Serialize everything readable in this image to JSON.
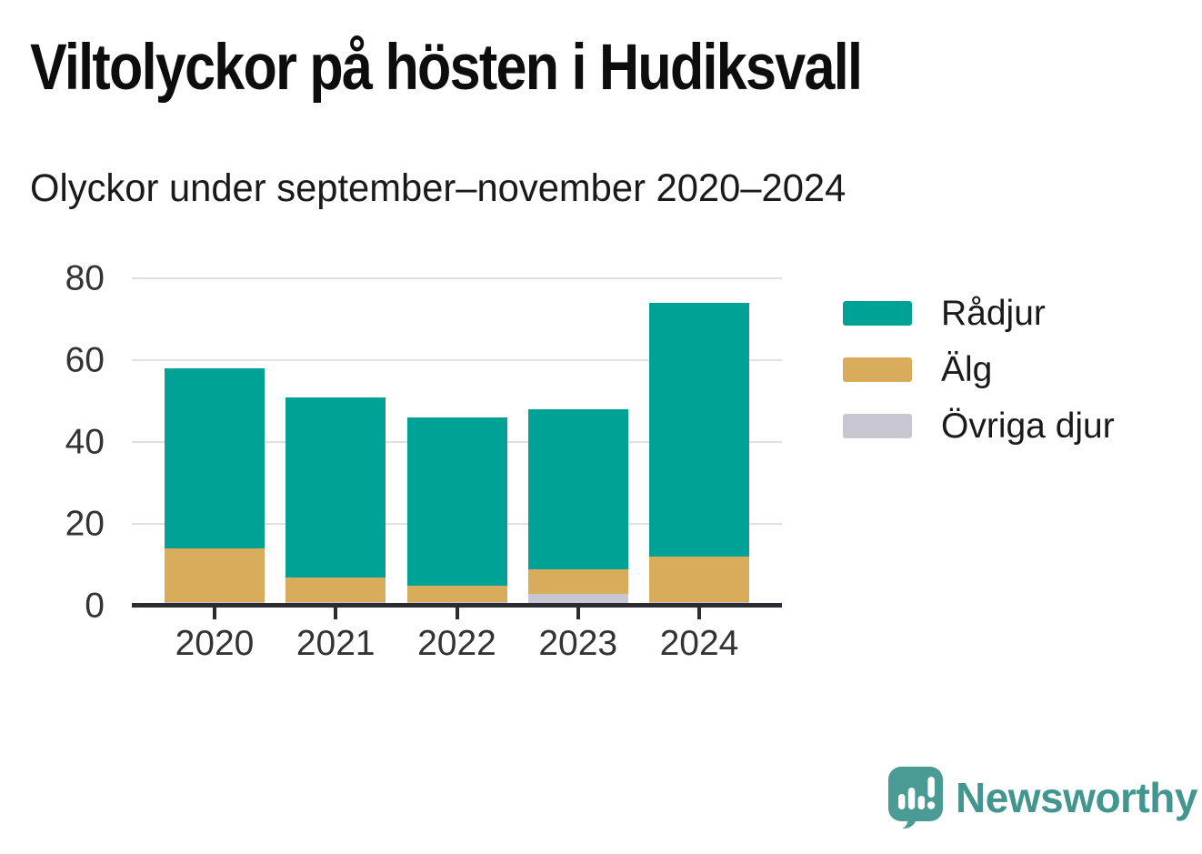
{
  "header": {
    "title": "Viltolyckor på hösten i Hudiksvall",
    "subtitle": "Olyckor under september–november 2020–2024"
  },
  "chart_data": {
    "type": "bar",
    "stacked": true,
    "title": "Viltolyckor på hösten i Hudiksvall",
    "subtitle": "Olyckor under september–november 2020–2024",
    "categories": [
      "2020",
      "2021",
      "2022",
      "2023",
      "2024"
    ],
    "series": [
      {
        "name": "Rådjur",
        "color": "#00A296",
        "values": [
          44,
          44,
          41,
          39,
          62
        ]
      },
      {
        "name": "Älg",
        "color": "#D9AC5B",
        "values": [
          13,
          6,
          4,
          6,
          11
        ]
      },
      {
        "name": "Övriga djur",
        "color": "#C8C7D1",
        "values": [
          1,
          1,
          1,
          3,
          1
        ]
      }
    ],
    "totals": [
      58,
      51,
      46,
      48,
      74
    ],
    "yticks": [
      0,
      20,
      40,
      60,
      80
    ],
    "ylim": [
      0,
      80
    ],
    "xlabel": "",
    "ylabel": "",
    "grid": "horizontal",
    "legend_position": "right"
  },
  "branding": {
    "logo_text": "Newsworthy",
    "logo_color": "#43968F"
  },
  "colors": {
    "axis": "#2B2B31",
    "grid": "#E0E0E0",
    "tick_text": "#333333",
    "title_text": "#0D0D0D",
    "subtitle_text": "#1A1A1A",
    "background": "#FFFFFF"
  }
}
